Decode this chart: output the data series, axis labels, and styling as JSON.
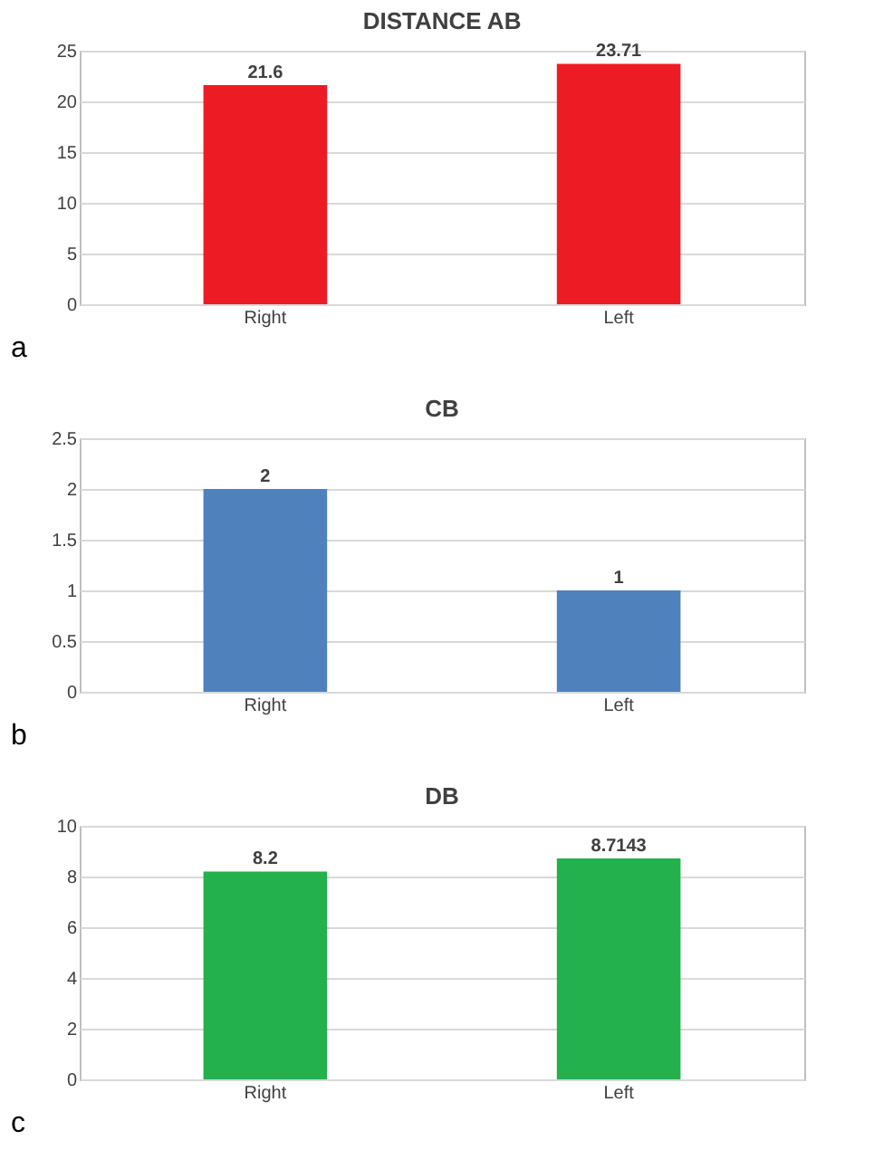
{
  "chart_data": [
    {
      "type": "bar",
      "title": "DISTANCE AB",
      "categories": [
        "Right",
        "Left"
      ],
      "values": [
        21.6,
        23.71
      ],
      "color": "#ed1c24",
      "ylim": [
        0,
        25
      ],
      "yticks": [
        0,
        5,
        10,
        15,
        20,
        25
      ],
      "grid": "y",
      "data_labels": true,
      "annotations": [
        "a"
      ]
    },
    {
      "type": "bar",
      "title": "CB",
      "categories": [
        "Right",
        "Left"
      ],
      "values": [
        2,
        1
      ],
      "color": "#4f81bd",
      "ylim": [
        0,
        2.5
      ],
      "yticks": [
        0,
        0.5,
        1,
        1.5,
        2,
        2.5
      ],
      "grid": "y",
      "data_labels": true,
      "annotations": [
        "b"
      ]
    },
    {
      "type": "bar",
      "title": "DB",
      "categories": [
        "Right",
        "Left"
      ],
      "values": [
        8.2,
        8.7143
      ],
      "color": "#22b14c",
      "ylim": [
        0,
        10
      ],
      "yticks": [
        0,
        2,
        4,
        6,
        8,
        10
      ],
      "grid": "y",
      "data_labels": true,
      "annotations": [
        "c"
      ]
    }
  ]
}
